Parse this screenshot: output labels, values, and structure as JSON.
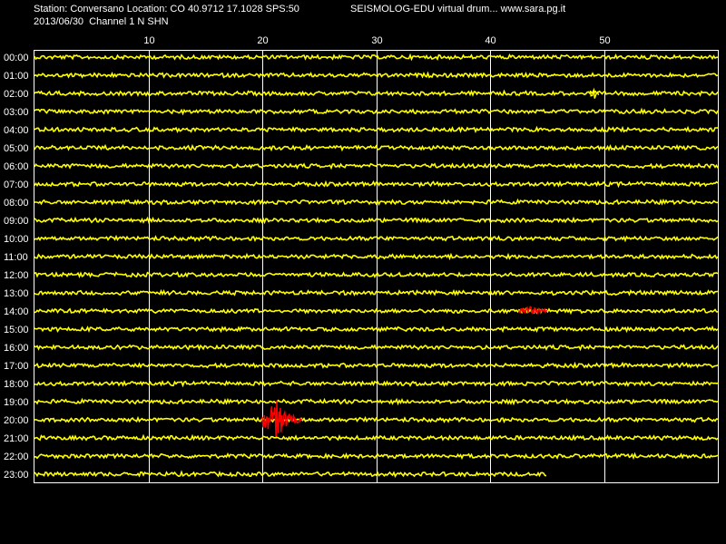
{
  "header": {
    "station_line": "Station: Conversano Location: CO 40.9712 17.1028 SPS:50",
    "title": "SEISMOLOG-EDU virtual drum... www.sara.pg.it",
    "date_line": "2013/06/30  Channel 1 N SHN"
  },
  "colors": {
    "background": "#000000",
    "trace": "#ffff00",
    "event": "#ff0000",
    "grid": "#ffffff",
    "text": "#ffffff"
  },
  "chart_data": {
    "type": "line",
    "xlabel": "",
    "ylabel": "",
    "xlim": [
      0,
      60
    ],
    "x_ticks": [
      10,
      20,
      30,
      40,
      50
    ],
    "grid": true,
    "rows": [
      "00:00",
      "01:00",
      "02:00",
      "03:00",
      "04:00",
      "05:00",
      "06:00",
      "07:00",
      "08:00",
      "09:00",
      "10:00",
      "11:00",
      "12:00",
      "13:00",
      "14:00",
      "15:00",
      "16:00",
      "17:00",
      "18:00",
      "19:00",
      "20:00",
      "21:00",
      "22:00",
      "23:00"
    ],
    "last_row_end_minute": 45,
    "events": [
      {
        "row": "20:00",
        "start_minute": 20.0,
        "end_minute": 23.5,
        "peak_minute": 21.3,
        "color": "#ff0000"
      },
      {
        "row": "14:00",
        "start_minute": 42.5,
        "end_minute": 45.0,
        "peak_minute": 43.5,
        "color": "#ff0000"
      },
      {
        "row": "02:00",
        "start_minute": 48.8,
        "end_minute": 49.6,
        "peak_minute": 49.2,
        "color": "#ffff00"
      }
    ]
  }
}
